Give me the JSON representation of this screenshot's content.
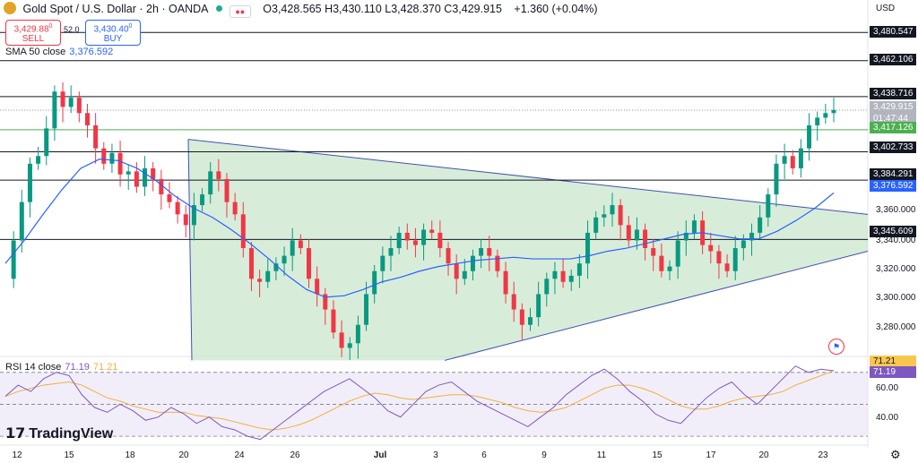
{
  "header": {
    "title": "Gold Spot / U.S. Dollar · 2h · OANDA",
    "ohlc": "O3,428.565  H3,430.110  L3,428.370  C3,429.915",
    "change": "+1.360 (+0.04%)",
    "sell_price": "3,429.88",
    "sell_sup": "0",
    "sell_label": "SELL",
    "buy_price": "3,430.40",
    "buy_sup": "0",
    "buy_label": "BUY",
    "spread": "52.0"
  },
  "indicators": {
    "sma_label": "SMA 50 close",
    "sma_value": "3,376.592",
    "rsi_label": "RSI 14 close",
    "rsi_value": "71.19",
    "rsi_ma_value": "71.21"
  },
  "price_axis": {
    "currency": "USD",
    "ticks": [
      "3,360.000",
      "3,340.000",
      "3,320.000",
      "3,300.000",
      "3,280.000"
    ],
    "level_labels": [
      "3,480.547",
      "3,462.106",
      "3,438.716",
      "3,402.733",
      "3,384.291",
      "3,345.609"
    ],
    "last_price": "3,429.915",
    "countdown": "01:47:44",
    "green_level": "3,417.126",
    "sma_tag": "3,376.592"
  },
  "rsi_axis": {
    "ticks": [
      "60.00",
      "40.00"
    ],
    "tag_ma": "71.21",
    "tag_rsi": "71.19"
  },
  "time_axis": {
    "labels": [
      "12",
      "15",
      "18",
      "20",
      "24",
      "26",
      "Jul",
      "3",
      "6",
      "9",
      "11",
      "15",
      "17",
      "20",
      "23"
    ]
  },
  "brand": "TradingView",
  "colors": {
    "up": "#089981",
    "down": "#f23645",
    "sma": "#2962ff",
    "triangle_fill": "#c8e6c9",
    "rsi_line": "#7e57c2",
    "rsi_ma": "#f0b03c",
    "rsi_band": "#ede7f6"
  },
  "chart_data": {
    "type": "candlestick",
    "y_range": [
      3270,
      3490
    ],
    "horizontal_levels": [
      3480.547,
      3462.106,
      3438.716,
      3402.733,
      3384.291,
      3345.609
    ],
    "green_level": 3417.126,
    "last_price": 3429.915,
    "triangle": {
      "upper_line": [
        [
          0.0,
          3398
        ],
        [
          1.0,
          3362
        ]
      ],
      "lower_line": [
        [
          0.27,
          3268
        ],
        [
          1.0,
          3338
        ]
      ]
    },
    "close_path": [
      3320,
      3345,
      3370,
      3395,
      3400,
      3418,
      3442,
      3432,
      3438,
      3428,
      3420,
      3405,
      3395,
      3402,
      3388,
      3390,
      3380,
      3392,
      3385,
      3375,
      3370,
      3362,
      3355,
      3368,
      3375,
      3390,
      3385,
      3370,
      3362,
      3340,
      3320,
      3318,
      3325,
      3330,
      3335,
      3345,
      3340,
      3320,
      3310,
      3300,
      3285,
      3275,
      3278,
      3290,
      3310,
      3325,
      3335,
      3340,
      3350,
      3345,
      3342,
      3352,
      3350,
      3340,
      3330,
      3320,
      3325,
      3335,
      3340,
      3335,
      3325,
      3310,
      3300,
      3290,
      3295,
      3310,
      3320,
      3325,
      3318,
      3322,
      3330,
      3350,
      3360,
      3362,
      3368,
      3355,
      3345,
      3352,
      3340,
      3335,
      3325,
      3328,
      3345,
      3350,
      3358,
      3342,
      3338,
      3330,
      3325,
      3340,
      3345,
      3350,
      3360,
      3375,
      3395,
      3400,
      3392,
      3405,
      3420,
      3425,
      3428,
      3430
    ],
    "sma_path": [
      3330,
      3345,
      3362,
      3378,
      3392,
      3398,
      3397,
      3392,
      3384,
      3374,
      3366,
      3360,
      3352,
      3343,
      3333,
      3322,
      3313,
      3308,
      3309,
      3313,
      3318,
      3321,
      3325,
      3328,
      3330,
      3332,
      3333,
      3334,
      3333,
      3333,
      3333,
      3335,
      3338,
      3340,
      3343,
      3346,
      3349,
      3350,
      3348,
      3346,
      3346,
      3351,
      3358,
      3366,
      3376
    ],
    "rsi": [
      55,
      62,
      58,
      66,
      70,
      68,
      56,
      48,
      45,
      50,
      46,
      40,
      42,
      48,
      44,
      38,
      42,
      36,
      34,
      30,
      28,
      34,
      40,
      46,
      52,
      58,
      62,
      66,
      60,
      54,
      46,
      42,
      50,
      58,
      62,
      64,
      58,
      52,
      48,
      44,
      40,
      36,
      42,
      48,
      56,
      62,
      68,
      72,
      66,
      58,
      52,
      44,
      40,
      38,
      46,
      54,
      60,
      64,
      56,
      50,
      58,
      66,
      74,
      70,
      72,
      71
    ],
    "rsi_ma": [
      55,
      58,
      60,
      62,
      63,
      64,
      62,
      58,
      54,
      52,
      49,
      47,
      45,
      45,
      45,
      43,
      42,
      41,
      39,
      37,
      35,
      34,
      35,
      37,
      40,
      44,
      48,
      52,
      55,
      57,
      56,
      54,
      53,
      54,
      55,
      56,
      56,
      55,
      53,
      51,
      48,
      46,
      45,
      46,
      48,
      52,
      56,
      60,
      62,
      62,
      60,
      57,
      53,
      49,
      47,
      47,
      49,
      52,
      54,
      55,
      56,
      58,
      62,
      65,
      68,
      71.21
    ]
  }
}
